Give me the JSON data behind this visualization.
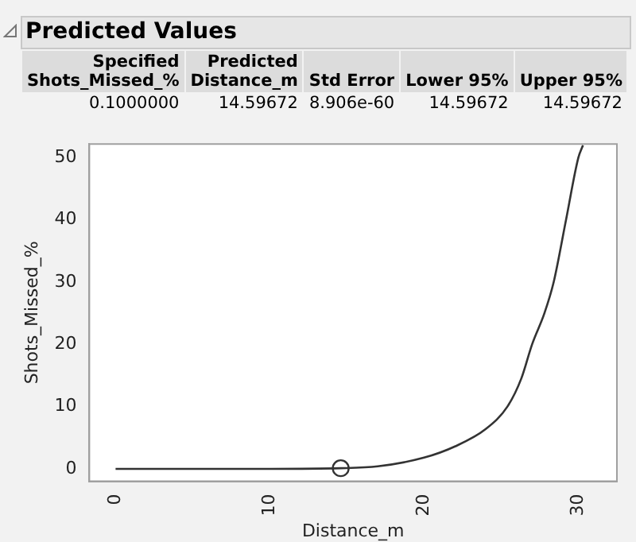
{
  "chart_data": {
    "type": "line",
    "title": "Predicted Values",
    "annotations": [
      "Specified\nShots_Missed_%",
      "Predicted\nDistance_m",
      "Std Error",
      "Lower 95%",
      "Upper 95%",
      "0.1000000",
      "14.59672",
      "8.906e-60",
      "14.59672",
      "14.59672"
    ],
    "xlabel": "Distance_m",
    "ylabel": "Shots_Missed_%",
    "series": [
      {
        "color": "#333333",
        "x": [
          0,
          5,
          10,
          14.6,
          17,
          20,
          22,
          24,
          25.4,
          26.3,
          27,
          27.8,
          28.4,
          29.2,
          30,
          30.3
        ],
        "values": [
          0,
          0,
          0,
          0.1,
          0.4,
          1.8,
          3.6,
          6.4,
          10,
          14.5,
          20,
          25,
          30,
          40,
          50,
          52
        ],
        "marker": "none"
      },
      {
        "type": "scatter",
        "color": "#333333",
        "x": [
          14.59672
        ],
        "values": [
          0.1
        ],
        "marker": "circle"
      }
    ],
    "xlim": [
      -1.7,
      32.5
    ],
    "xticks": [
      0,
      10,
      20,
      30
    ],
    "ylim": [
      -2,
      52.2
    ],
    "yticks": [
      0,
      10,
      20,
      30,
      40,
      50
    ],
    "grid": false,
    "legend": false
  }
}
